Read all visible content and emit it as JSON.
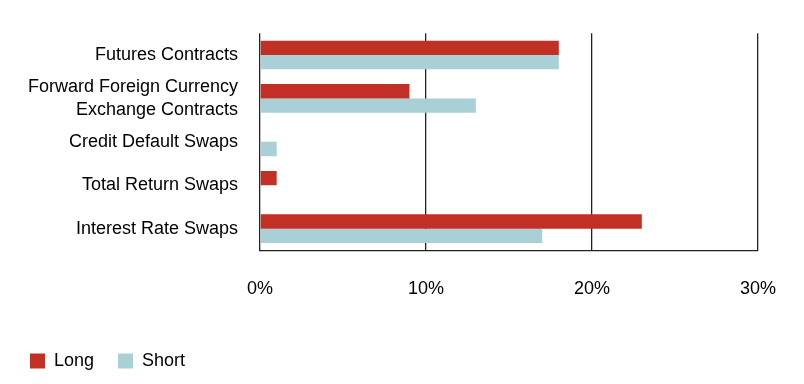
{
  "chart_data": {
    "type": "bar",
    "orientation": "horizontal",
    "categories": [
      "Futures Contracts",
      "Forward Foreign Currency\nExchange Contracts",
      "Credit Default Swaps",
      "Total Return Swaps",
      "Interest Rate Swaps"
    ],
    "series": [
      {
        "name": "Long",
        "color": "#c22f25",
        "values": [
          18,
          9,
          0,
          1,
          23
        ]
      },
      {
        "name": "Short",
        "color": "#a8d0d6",
        "values": [
          18,
          13,
          1,
          0,
          17
        ]
      }
    ],
    "xlim": [
      0,
      30
    ],
    "xticks": [
      {
        "value": 0,
        "label": "0%"
      },
      {
        "value": 10,
        "label": "10%"
      },
      {
        "value": 20,
        "label": "20%"
      },
      {
        "value": 30,
        "label": "30%"
      }
    ],
    "grid": true,
    "legend": "bottom-left"
  }
}
